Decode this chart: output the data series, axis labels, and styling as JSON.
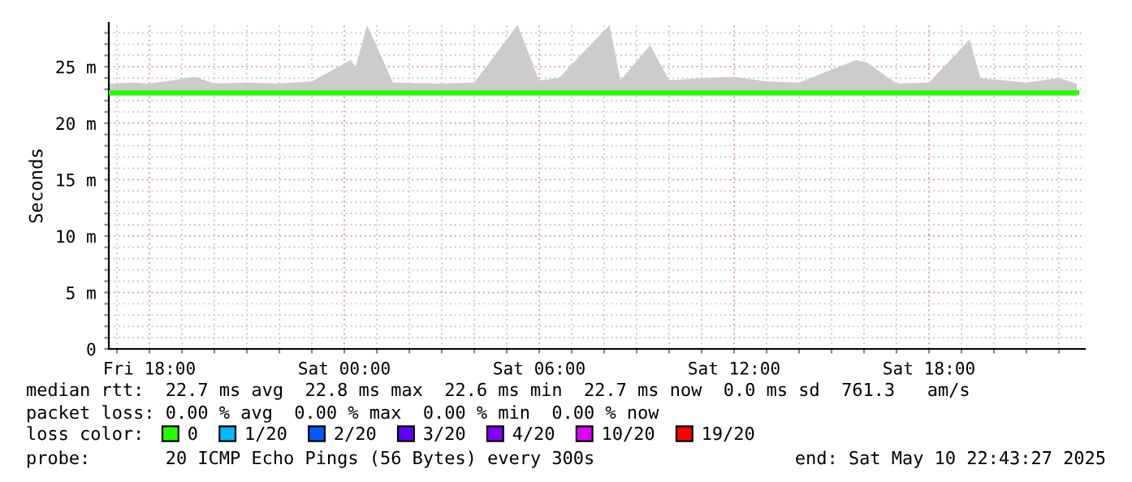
{
  "chart_data": {
    "type": "line",
    "ylabel": "Seconds",
    "xlim": [
      "2025-05-09T16:45",
      "2025-05-10T22:48"
    ],
    "ylim": [
      0,
      28.9
    ],
    "xticks": [
      {
        "value": "2025-05-09T17:00",
        "label": null
      },
      {
        "value": "2025-05-09T18:00",
        "label": "Fri 18:00"
      },
      {
        "value": "2025-05-09T19:00",
        "label": null
      },
      {
        "value": "2025-05-09T20:00",
        "label": null
      },
      {
        "value": "2025-05-09T21:00",
        "label": null
      },
      {
        "value": "2025-05-09T22:00",
        "label": null
      },
      {
        "value": "2025-05-09T23:00",
        "label": null
      },
      {
        "value": "2025-05-10T00:00",
        "label": "Sat 00:00"
      },
      {
        "value": "2025-05-10T01:00",
        "label": null
      },
      {
        "value": "2025-05-10T02:00",
        "label": null
      },
      {
        "value": "2025-05-10T03:00",
        "label": null
      },
      {
        "value": "2025-05-10T04:00",
        "label": null
      },
      {
        "value": "2025-05-10T05:00",
        "label": null
      },
      {
        "value": "2025-05-10T06:00",
        "label": "Sat 06:00"
      },
      {
        "value": "2025-05-10T07:00",
        "label": null
      },
      {
        "value": "2025-05-10T08:00",
        "label": null
      },
      {
        "value": "2025-05-10T09:00",
        "label": null
      },
      {
        "value": "2025-05-10T10:00",
        "label": null
      },
      {
        "value": "2025-05-10T11:00",
        "label": null
      },
      {
        "value": "2025-05-10T12:00",
        "label": "Sat 12:00"
      },
      {
        "value": "2025-05-10T13:00",
        "label": null
      },
      {
        "value": "2025-05-10T14:00",
        "label": null
      },
      {
        "value": "2025-05-10T15:00",
        "label": null
      },
      {
        "value": "2025-05-10T16:00",
        "label": null
      },
      {
        "value": "2025-05-10T17:00",
        "label": null
      },
      {
        "value": "2025-05-10T18:00",
        "label": "Sat 18:00"
      },
      {
        "value": "2025-05-10T19:00",
        "label": null
      },
      {
        "value": "2025-05-10T20:00",
        "label": null
      },
      {
        "value": "2025-05-10T21:00",
        "label": null
      },
      {
        "value": "2025-05-10T22:00",
        "label": null
      }
    ],
    "yticks": [
      0,
      {
        "value": 1,
        "label": null
      },
      {
        "value": 2,
        "label": null
      },
      {
        "value": 3,
        "label": null
      },
      {
        "value": 4,
        "label": null
      },
      {
        "value": 5,
        "label": "5 m"
      },
      {
        "value": 6,
        "label": null
      },
      {
        "value": 7,
        "label": null
      },
      {
        "value": 8,
        "label": null
      },
      {
        "value": 9,
        "label": null
      },
      {
        "value": 10,
        "label": "10 m"
      },
      {
        "value": 11,
        "label": null
      },
      {
        "value": 12,
        "label": null
      },
      {
        "value": 13,
        "label": null
      },
      {
        "value": 14,
        "label": null
      },
      {
        "value": 15,
        "label": "15 m"
      },
      {
        "value": 16,
        "label": null
      },
      {
        "value": 17,
        "label": null
      },
      {
        "value": 18,
        "label": null
      },
      {
        "value": 19,
        "label": null
      },
      {
        "value": 20,
        "label": "20 m"
      },
      {
        "value": 21,
        "label": null
      },
      {
        "value": 22,
        "label": null
      },
      {
        "value": 23,
        "label": null
      },
      {
        "value": 24,
        "label": null
      },
      {
        "value": 25,
        "label": "25 m"
      },
      {
        "value": 26,
        "label": null
      },
      {
        "value": 27,
        "label": null
      },
      {
        "value": 28,
        "label": null
      }
    ],
    "grid": true,
    "legend": "bottom",
    "legend_title": "loss color:",
    "series": [
      {
        "name": "0",
        "color": "#26ff00",
        "x": [
          "2025-05-09T16:45",
          "2025-05-09T17:30",
          "2025-05-09T18:00",
          "2025-05-09T19:25",
          "2025-05-09T20:00",
          "2025-05-09T21:00",
          "2025-05-09T22:00",
          "2025-05-09T23:00",
          "2025-05-10T00:12",
          "2025-05-10T00:21",
          "2025-05-10T00:42",
          "2025-05-10T01:30",
          "2025-05-10T03:00",
          "2025-05-10T04:00",
          "2025-05-10T05:20",
          "2025-05-10T06:00",
          "2025-05-10T06:36",
          "2025-05-10T08:10",
          "2025-05-10T08:30",
          "2025-05-10T09:25",
          "2025-05-10T10:00",
          "2025-05-10T11:00",
          "2025-05-10T12:00",
          "2025-05-10T13:00",
          "2025-05-10T14:00",
          "2025-05-10T15:45",
          "2025-05-10T16:05",
          "2025-05-10T17:00",
          "2025-05-10T18:00",
          "2025-05-10T19:15",
          "2025-05-10T19:35",
          "2025-05-10T21:00",
          "2025-05-10T22:00",
          "2025-05-10T22:33"
        ],
        "values": [
          22.7,
          22.7,
          22.7,
          22.7,
          22.7,
          22.7,
          22.7,
          22.7,
          22.7,
          22.7,
          22.7,
          22.7,
          22.7,
          22.7,
          22.7,
          22.7,
          22.7,
          22.7,
          22.7,
          22.7,
          22.7,
          22.7,
          22.7,
          22.7,
          22.7,
          22.7,
          22.7,
          22.7,
          22.7,
          22.7,
          22.7,
          22.7,
          22.7,
          22.7
        ],
        "lower": [
          22.4,
          22.4,
          22.4,
          22.4,
          22.4,
          22.4,
          22.4,
          22.4,
          22.4,
          22.4,
          22.4,
          22.4,
          22.4,
          22.4,
          22.4,
          22.4,
          22.4,
          22.4,
          22.4,
          22.4,
          22.4,
          22.4,
          22.4,
          22.4,
          22.4,
          22.4,
          22.4,
          22.4,
          22.4,
          22.4,
          22.4,
          22.4,
          22.4,
          22.4
        ],
        "upper": [
          23.5,
          23.6,
          23.5,
          24.1,
          23.5,
          23.6,
          23.5,
          23.7,
          25.6,
          25.0,
          28.7,
          23.6,
          23.5,
          23.6,
          28.7,
          23.8,
          24.0,
          28.7,
          23.8,
          26.9,
          23.8,
          24.0,
          24.1,
          23.7,
          23.6,
          25.6,
          25.4,
          23.5,
          23.6,
          27.4,
          24.0,
          23.6,
          24.0,
          23.5
        ]
      },
      {
        "name": "1/20",
        "color": "#00b8ff"
      },
      {
        "name": "2/20",
        "color": "#0059ff"
      },
      {
        "name": "3/20",
        "color": "#5e00ff"
      },
      {
        "name": "4/20",
        "color": "#7e00ff"
      },
      {
        "name": "10/20",
        "color": "#dd00ff"
      },
      {
        "name": "19/20",
        "color": "#ff0000"
      }
    ],
    "annotations": [
      "median rtt:  22.7 ms avg  22.8 ms max  22.6 ms min  22.7 ms now  0.0 ms sd  761.3   am/s",
      "packet loss: 0.00 % avg  0.00 % max  0.00 % min  0.00 % now",
      "probe:       20 ICMP Echo Pings (56 Bytes) every 300s",
      "end: Sat May 10 22:43:27 2025"
    ]
  }
}
